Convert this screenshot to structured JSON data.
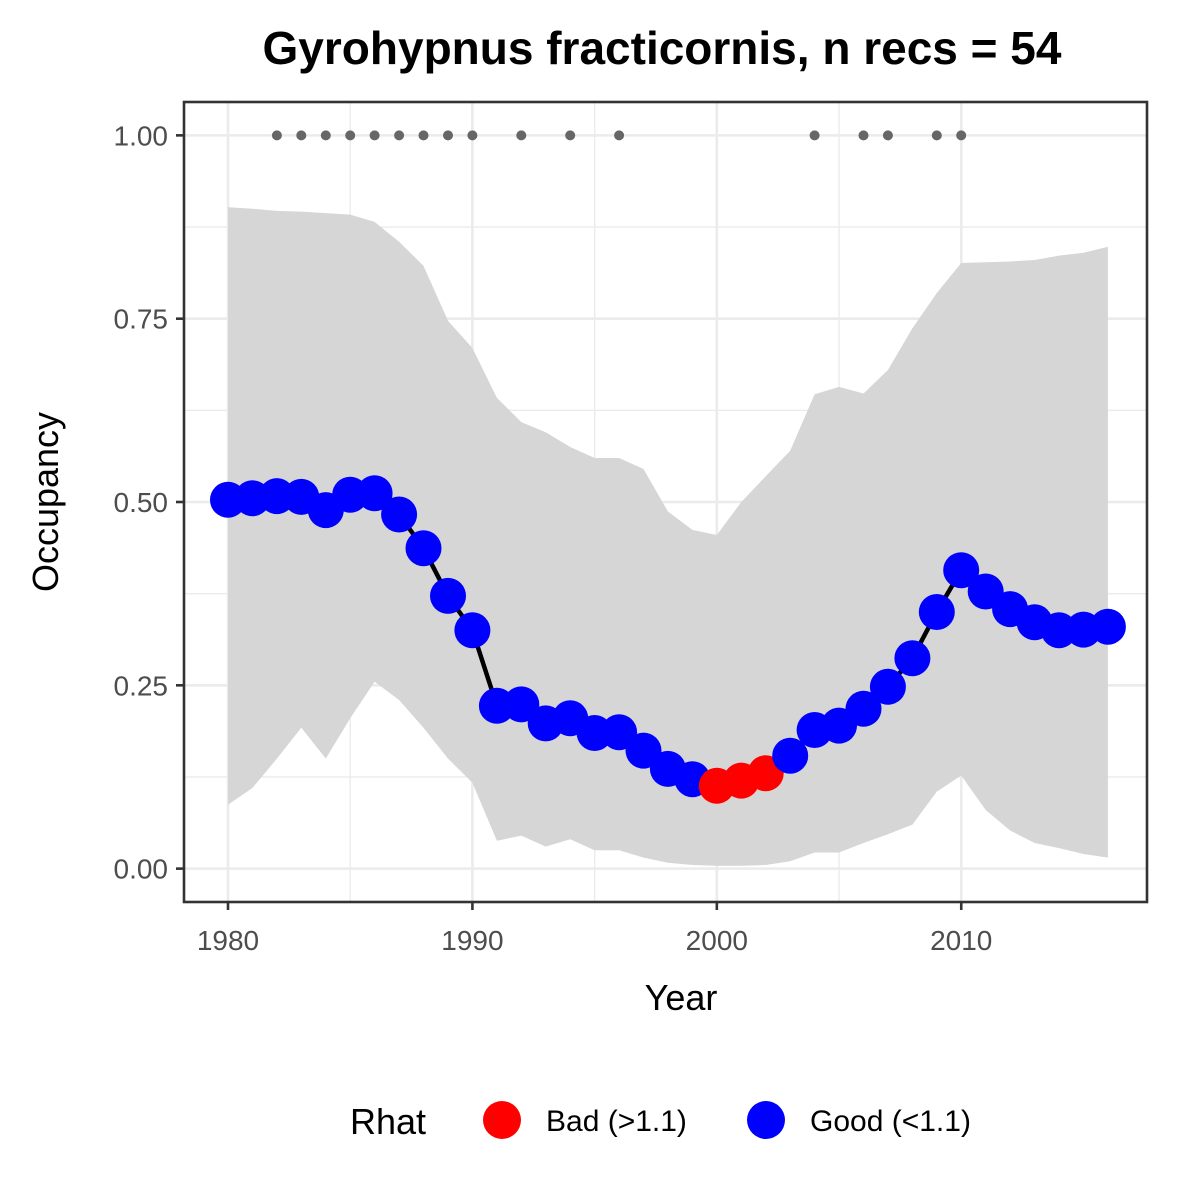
{
  "chart_data": {
    "type": "line",
    "title": "Gyrohypnus fracticornis, n recs = 54",
    "xlabel": "Year",
    "ylabel": "Occupancy",
    "xlim": [
      1978.2,
      2017.6
    ],
    "ylim": [
      -0.0455,
      1.0455
    ],
    "x_ticks": [
      1980,
      1990,
      2000,
      2010
    ],
    "x_tick_labels": [
      "1980",
      "1990",
      "2000",
      "2010"
    ],
    "y_ticks": [
      0,
      0.25,
      0.5,
      0.75,
      1.0
    ],
    "y_tick_labels": [
      "0.00",
      "0.25",
      "0.50",
      "0.75",
      "1.00"
    ],
    "grid": true,
    "legend": {
      "title": "Rhat",
      "placement": "bottom",
      "entries": [
        {
          "label": "Bad (>1.1)",
          "color": "#ff0000"
        },
        {
          "label": "Good (<1.1)",
          "color": "#0000ff"
        }
      ]
    },
    "colors": {
      "good": "#0000ff",
      "bad": "#ff0000",
      "ribbon": "#d6d6d6",
      "line": "#000000",
      "record_dots": "#666666",
      "grid": "#ebebeb",
      "panel_border": "#333333"
    },
    "series": [
      {
        "x": [
          1980,
          1981,
          1982,
          1983,
          1984,
          1985,
          1986,
          1987,
          1988,
          1989,
          1990,
          1991,
          1992,
          1993,
          1994,
          1995,
          1996,
          1997,
          1998,
          1999,
          2000,
          2001,
          2002,
          2003,
          2004,
          2005,
          2006,
          2007,
          2008,
          2009,
          2010,
          2011,
          2012,
          2013,
          2014,
          2015,
          2016
        ],
        "y": [
          0.503,
          0.505,
          0.508,
          0.507,
          0.489,
          0.51,
          0.512,
          0.483,
          0.437,
          0.372,
          0.325,
          0.222,
          0.224,
          0.198,
          0.205,
          0.185,
          0.186,
          0.161,
          0.136,
          0.122,
          0.113,
          0.12,
          0.13,
          0.154,
          0.189,
          0.195,
          0.218,
          0.248,
          0.287,
          0.35,
          0.407,
          0.378,
          0.354,
          0.336,
          0.325,
          0.326,
          0.33
        ],
        "rhat": [
          "Good",
          "Good",
          "Good",
          "Good",
          "Good",
          "Good",
          "Good",
          "Good",
          "Good",
          "Good",
          "Good",
          "Good",
          "Good",
          "Good",
          "Good",
          "Good",
          "Good",
          "Good",
          "Good",
          "Good",
          "Bad",
          "Bad",
          "Bad",
          "Good",
          "Good",
          "Good",
          "Good",
          "Good",
          "Good",
          "Good",
          "Good",
          "Good",
          "Good",
          "Good",
          "Good",
          "Good",
          "Good"
        ],
        "lower": [
          0.087,
          0.11,
          0.15,
          0.192,
          0.15,
          0.205,
          0.255,
          0.23,
          0.192,
          0.15,
          0.117,
          0.038,
          0.045,
          0.03,
          0.04,
          0.025,
          0.025,
          0.015,
          0.008,
          0.005,
          0.004,
          0.004,
          0.005,
          0.01,
          0.022,
          0.022,
          0.035,
          0.047,
          0.06,
          0.105,
          0.127,
          0.08,
          0.052,
          0.035,
          0.028,
          0.02,
          0.015
        ],
        "upper": [
          0.902,
          0.9,
          0.897,
          0.896,
          0.894,
          0.892,
          0.882,
          0.855,
          0.822,
          0.747,
          0.71,
          0.642,
          0.609,
          0.595,
          0.575,
          0.56,
          0.56,
          0.545,
          0.487,
          0.462,
          0.455,
          0.5,
          0.535,
          0.57,
          0.647,
          0.657,
          0.648,
          0.68,
          0.737,
          0.785,
          0.826,
          0.827,
          0.828,
          0.83,
          0.836,
          0.84,
          0.848
        ]
      }
    ],
    "record_years": [
      1982,
      1983,
      1984,
      1985,
      1986,
      1987,
      1988,
      1989,
      1990,
      1992,
      1994,
      1996,
      2004,
      2006,
      2007,
      2009,
      2010
    ],
    "record_y": 1.0
  }
}
